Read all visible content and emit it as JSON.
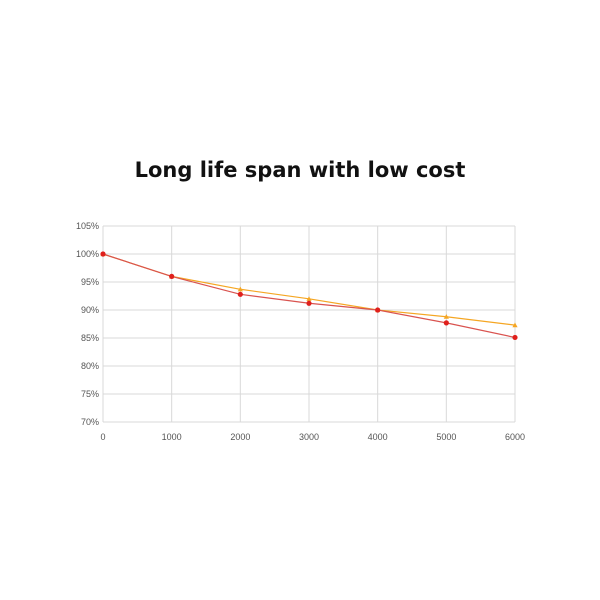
{
  "title": "Long life span with low cost",
  "chart_data": {
    "type": "line",
    "title": "Long life span with low cost",
    "xlabel": "",
    "ylabel": "",
    "x": [
      0,
      1000,
      2000,
      3000,
      4000,
      5000,
      6000
    ],
    "xlim": [
      0,
      6000
    ],
    "ylim": [
      70,
      105
    ],
    "x_ticks": [
      "0",
      "1000",
      "2000",
      "3000",
      "4000",
      "5000",
      "6000"
    ],
    "y_ticks": [
      "70%",
      "75%",
      "80%",
      "85%",
      "90%",
      "95%",
      "100%",
      "105%"
    ],
    "y_tick_values": [
      70,
      75,
      80,
      85,
      90,
      95,
      100,
      105
    ],
    "grid": true,
    "legend": "none",
    "series": [
      {
        "values": [
          100,
          96,
          93.7,
          92,
          90,
          88.8,
          87.3
        ],
        "color": "#f5a623",
        "marker": "triangle"
      },
      {
        "values": [
          100,
          96,
          92.8,
          91.2,
          90,
          87.7,
          85.1
        ],
        "color": "#e0201c",
        "line_color": "#d9534f",
        "marker": "circle"
      }
    ]
  }
}
